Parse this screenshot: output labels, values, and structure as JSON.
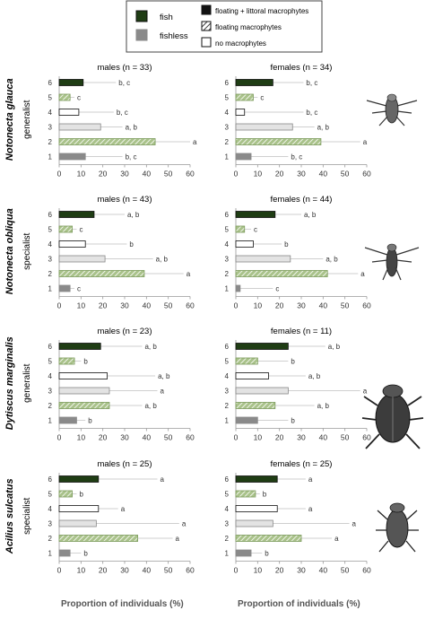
{
  "legend": {
    "items": [
      {
        "key": "fish",
        "label": "fish",
        "pattern": "fish"
      },
      {
        "key": "fishless",
        "label": "fishless",
        "pattern": "fishless"
      },
      {
        "key": "floating_littoral",
        "label": "floating + littoral macrophytes",
        "pattern": "solid"
      },
      {
        "key": "floating",
        "label": "floating macrophytes",
        "pattern": "hatch"
      },
      {
        "key": "none",
        "label": "no macrophytes",
        "pattern": "empty"
      }
    ]
  },
  "colors": {
    "fish": "#1f3d14",
    "fishless": "#8a8a8a",
    "hatch_fill": "#a9c28a",
    "empty_fill": "#ffffff",
    "light_fill": "#e3e3e3",
    "error_line": "#cfcfcf"
  },
  "x_axis_title_left": "Proportion of individuals (%)",
  "x_axis_title_right": "Proportion of individuals (%)",
  "chart_data": {
    "type": "bar",
    "orientation": "horizontal",
    "categories": [
      "1",
      "2",
      "3",
      "4",
      "5",
      "6"
    ],
    "xlim": [
      0,
      60
    ],
    "xticks": [
      "0",
      "10",
      "20",
      "30",
      "40",
      "50",
      "60"
    ],
    "bar_styles": [
      "fishless-empty",
      "hatch",
      "light",
      "empty",
      "hatch",
      "fish-solid"
    ],
    "rows": [
      {
        "species": "Notonecta glauca",
        "guild": "generalist",
        "panels": [
          {
            "title": "males (n = 33)",
            "values": [
              12,
              44,
              19,
              9,
              5,
              11
            ],
            "errors": [
              29,
              60,
              29,
              25,
              7,
              26
            ],
            "letters": [
              "b, c",
              "a",
              "a, b",
              "b, c",
              "c",
              "b, c"
            ]
          },
          {
            "title": "females (n = 34)",
            "values": [
              7,
              39,
              26,
              4,
              8,
              17
            ],
            "errors": [
              24,
              57,
              36,
              31,
              10,
              31
            ],
            "letters": [
              "b, c",
              "a",
              "a, b",
              "b, c",
              "c",
              "b, c"
            ]
          }
        ]
      },
      {
        "species": "Notonecta obliqua",
        "guild": "specialist",
        "panels": [
          {
            "title": "males (n = 43)",
            "values": [
              5,
              39,
              21,
              12,
              6,
              16
            ],
            "errors": [
              7,
              57,
              43,
              31,
              8,
              30
            ],
            "letters": [
              "c",
              "a",
              "a, b",
              "b",
              "c",
              "a, b"
            ]
          },
          {
            "title": "females (n = 44)",
            "values": [
              2,
              42,
              25,
              8,
              4,
              18
            ],
            "errors": [
              17,
              56,
              40,
              21,
              7,
              30
            ],
            "letters": [
              "c",
              "a",
              "a, b",
              "b",
              "c",
              "a, b"
            ]
          }
        ]
      },
      {
        "species": "Dytiscus marginalis",
        "guild": "generalist",
        "panels": [
          {
            "title": "males (n = 23)",
            "values": [
              8,
              23,
              23,
              22,
              7,
              19
            ],
            "errors": [
              12,
              38,
              45,
              44,
              10,
              38
            ],
            "letters": [
              "b",
              "a, b",
              "a",
              "a, b",
              "b",
              "a, b"
            ]
          },
          {
            "title": "females (n = 11)",
            "values": [
              10,
              18,
              24,
              15,
              10,
              24
            ],
            "errors": [
              24,
              36,
              57,
              32,
              24,
              41
            ],
            "letters": [
              "b",
              "a, b",
              "a",
              "a, b",
              "b",
              "a, b"
            ]
          }
        ]
      },
      {
        "species": "Acilius sulcatus",
        "guild": "specialist",
        "panels": [
          {
            "title": "males (n = 25)",
            "values": [
              5,
              36,
              17,
              18,
              6,
              18
            ],
            "errors": [
              10,
              52,
              55,
              27,
              8,
              45
            ],
            "letters": [
              "b",
              "a",
              "a",
              "a",
              "b",
              "a"
            ]
          },
          {
            "title": "females (n = 25)",
            "values": [
              7,
              30,
              17,
              19,
              9,
              19
            ],
            "errors": [
              12,
              44,
              52,
              32,
              11,
              32
            ],
            "letters": [
              "b",
              "a",
              "a",
              "a",
              "b",
              "a"
            ]
          }
        ]
      }
    ]
  }
}
